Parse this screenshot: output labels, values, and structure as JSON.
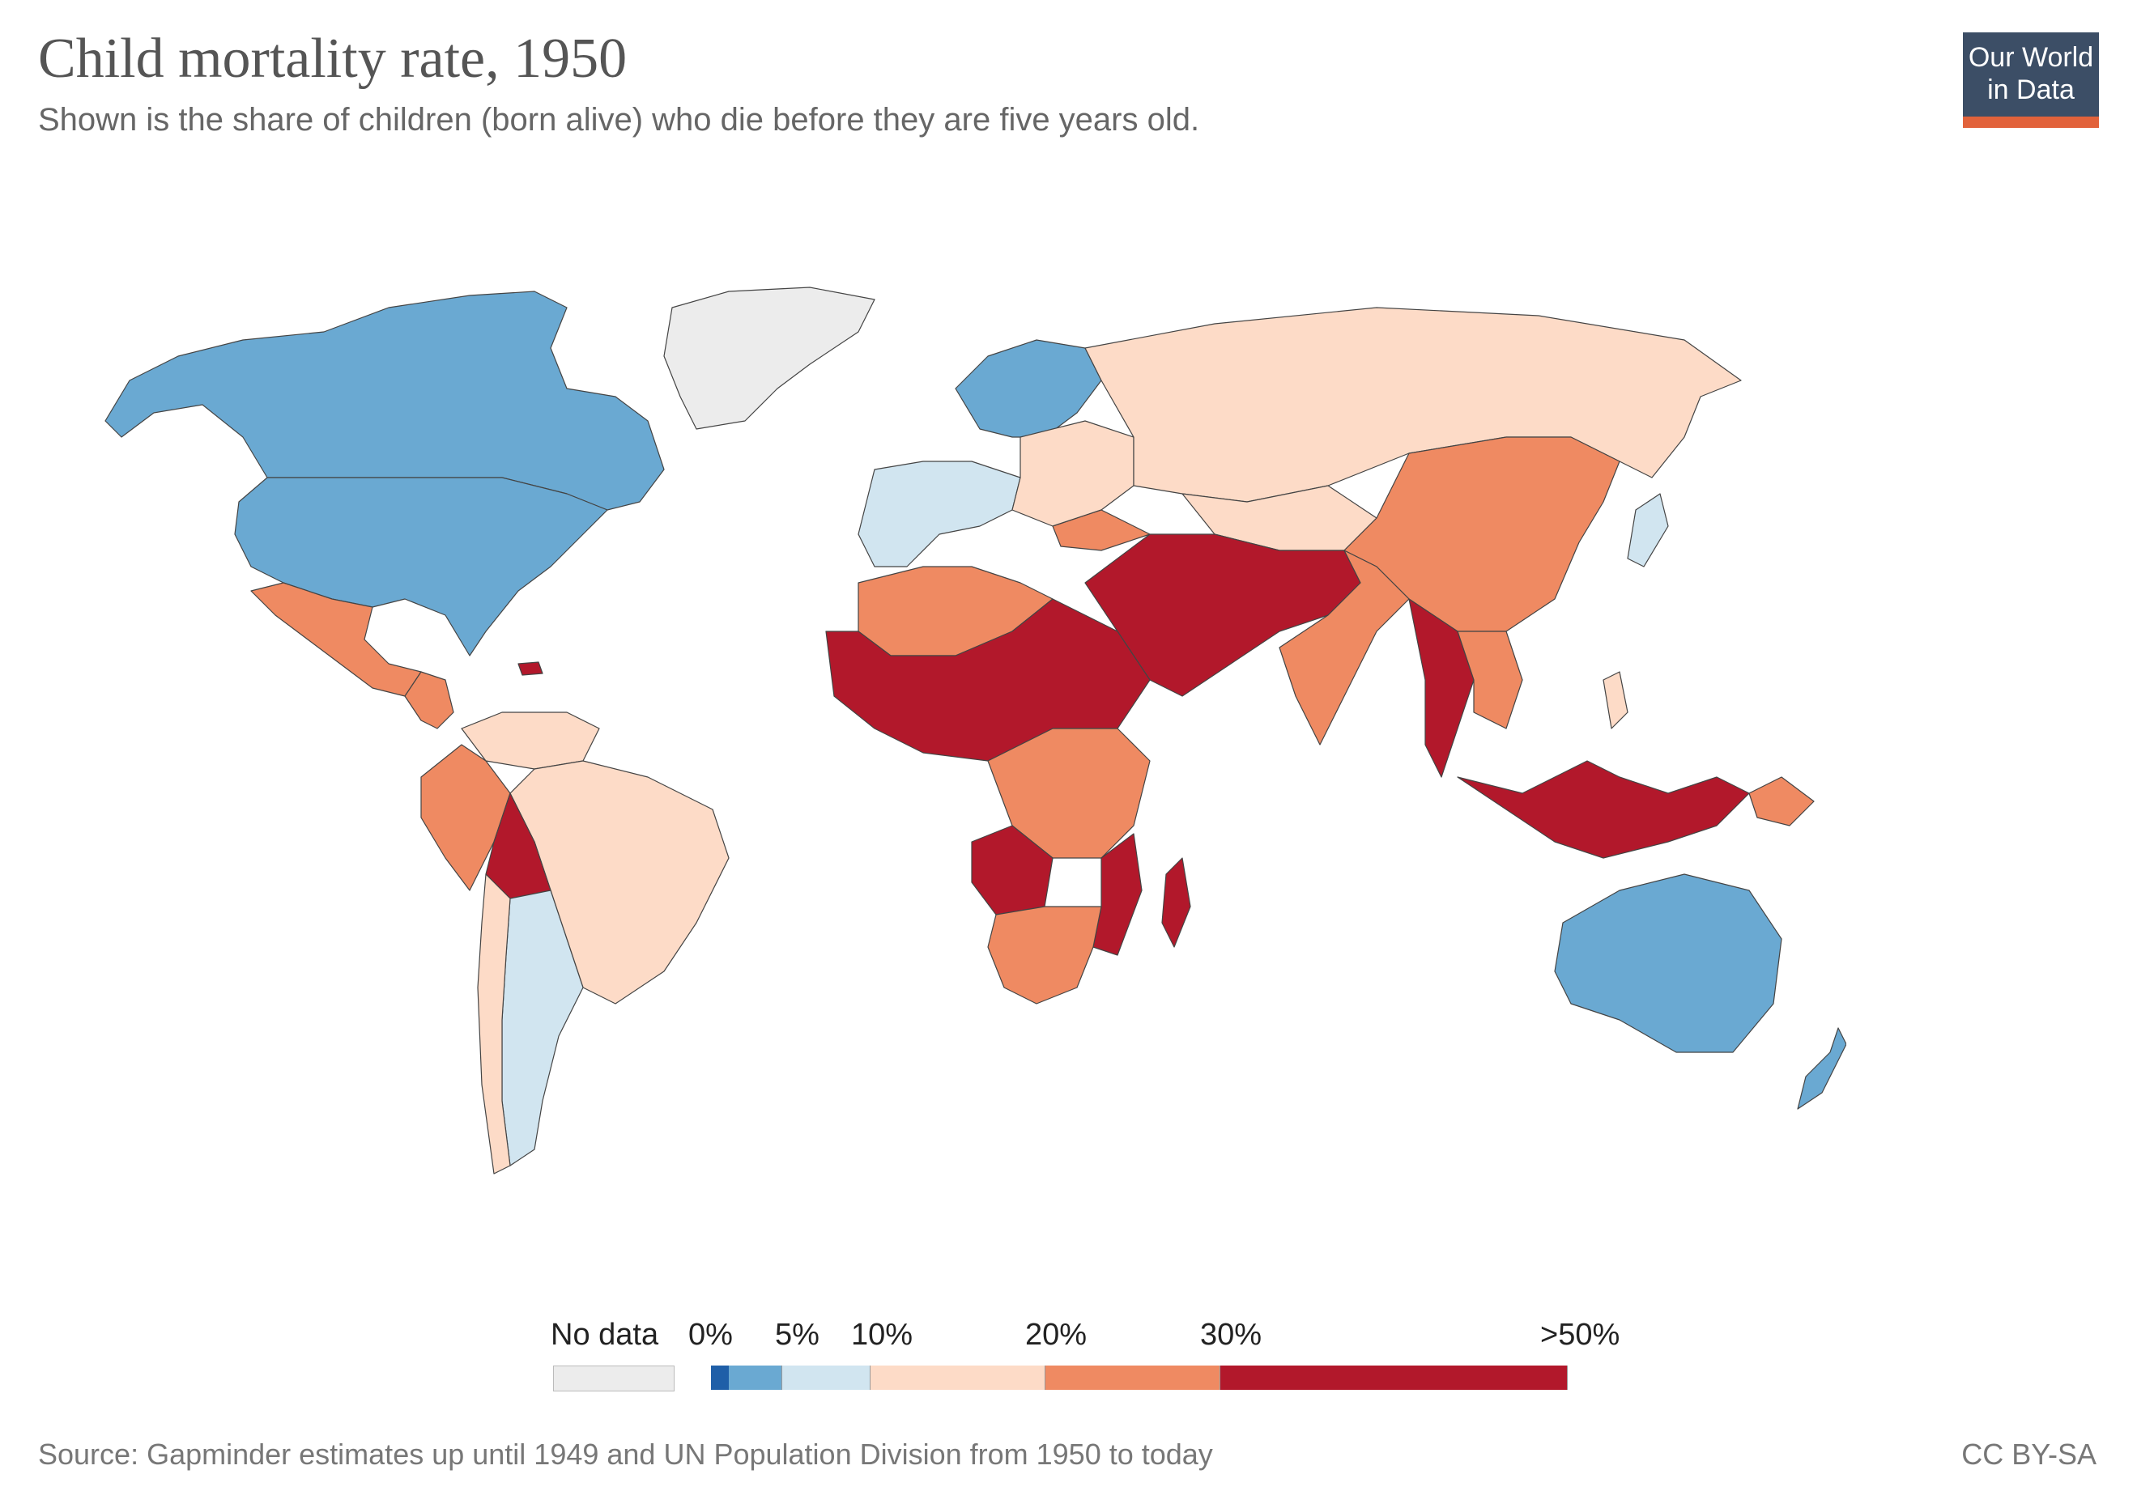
{
  "title": "Child mortality rate, 1950",
  "subtitle": "Shown is the share of children (born alive) who die before they are five years old.",
  "logo": {
    "line1": "Our World",
    "line2": "in Data"
  },
  "legend": {
    "no_data_label": "No data",
    "bins": [
      {
        "label": "0%",
        "color": "#1f5fa8"
      },
      {
        "label": "5%",
        "color": "#6aa9d2"
      },
      {
        "label": "10%",
        "color": "#d1e5f0"
      },
      {
        "label": "20%",
        "color": "#fddbc7"
      },
      {
        "label": "30%",
        "color": "#ef8a62"
      },
      {
        "label": ">50%",
        "color": "#b2182b"
      }
    ],
    "no_data_color": "#ececec"
  },
  "regions": [
    {
      "name": "Canada",
      "bin": "0-5%"
    },
    {
      "name": "United States",
      "bin": "0-5%"
    },
    {
      "name": "Greenland",
      "bin": "No data"
    },
    {
      "name": "Mexico",
      "bin": "20-30%"
    },
    {
      "name": "Central America",
      "bin": "20-30%"
    },
    {
      "name": "Haiti",
      "bin": ">30%"
    },
    {
      "name": "Colombia / Venezuela",
      "bin": "10-20%"
    },
    {
      "name": "Peru",
      "bin": "20-30%"
    },
    {
      "name": "Bolivia",
      "bin": ">30%"
    },
    {
      "name": "Brazil",
      "bin": "10-20%"
    },
    {
      "name": "Argentina",
      "bin": "5-10%"
    },
    {
      "name": "Chile",
      "bin": "10-20%"
    },
    {
      "name": "Northern Europe",
      "bin": "0-5%"
    },
    {
      "name": "Western Europe",
      "bin": "5-10%"
    },
    {
      "name": "Eastern Europe",
      "bin": "10-20%"
    },
    {
      "name": "Russia",
      "bin": "10-20%"
    },
    {
      "name": "China",
      "bin": "20-30%"
    },
    {
      "name": "India",
      "bin": "20-30%"
    },
    {
      "name": "Middle East",
      "bin": ">30%"
    },
    {
      "name": "North Africa",
      "bin": "20-30%"
    },
    {
      "name": "Sahel and West Africa",
      "bin": ">30%"
    },
    {
      "name": "Central and East Africa",
      "bin": "20-30%"
    },
    {
      "name": "Angola",
      "bin": ">30%"
    },
    {
      "name": "Mozambique",
      "bin": ">30%"
    },
    {
      "name": "Madagascar",
      "bin": ">30%"
    },
    {
      "name": "Southern Africa",
      "bin": "20-30%"
    },
    {
      "name": "Southeast Asia",
      "bin": ">30%"
    },
    {
      "name": "Indonesia",
      "bin": ">30%"
    },
    {
      "name": "Papua New Guinea",
      "bin": "20-30%"
    },
    {
      "name": "Japan",
      "bin": "5-10%"
    },
    {
      "name": "Australia",
      "bin": "0-5%"
    },
    {
      "name": "New Zealand",
      "bin": "0-5%"
    }
  ],
  "source": "Source: Gapminder estimates up until 1949 and UN Population Division from 1950 to today",
  "license": "CC BY-SA"
}
